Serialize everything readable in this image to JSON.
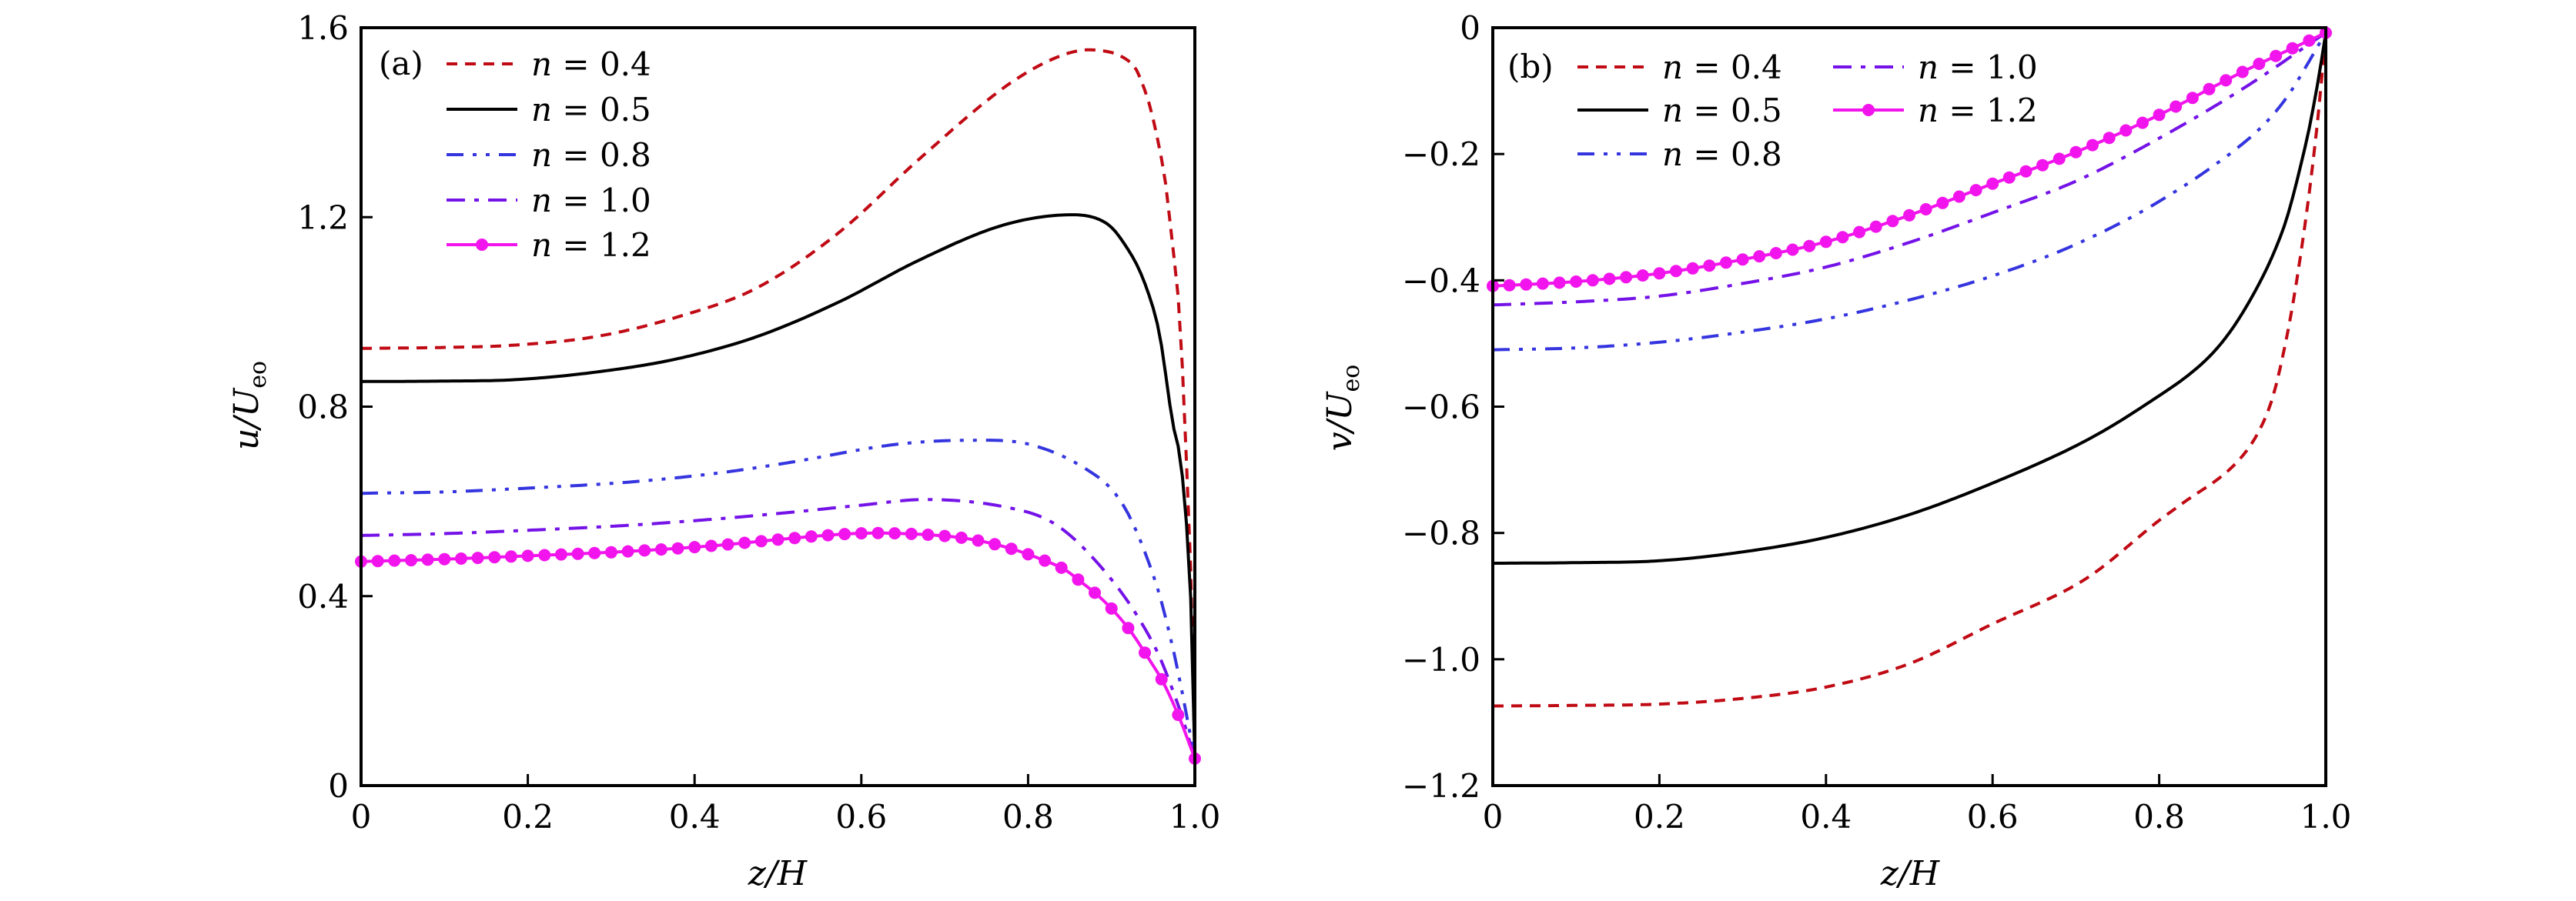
{
  "chart_data": [
    {
      "type": "line",
      "panel": "(a)",
      "xlabel": "z/H",
      "ylabel_main": "u/U",
      "ylabel_sub": "eo",
      "xlim": [
        0,
        1.0
      ],
      "ylim": [
        0,
        1.6
      ],
      "xticks": [
        0,
        0.2,
        0.4,
        0.6,
        0.8,
        1.0
      ],
      "xtick_labels": [
        "0",
        "0.2",
        "0.4",
        "0.6",
        "0.8",
        "1.0"
      ],
      "yticks": [
        0,
        0.4,
        0.8,
        1.2,
        1.6
      ],
      "ytick_labels": [
        "0",
        "0.4",
        "0.8",
        "1.2",
        "1.6"
      ],
      "grid": false,
      "legend_position": "top-left",
      "legend_columns": 1,
      "series": [
        {
          "name": "n = 0.4",
          "label_var": "n",
          "label_val": "0.4",
          "color": "#C00A14",
          "style": "dashed",
          "markers": false,
          "x": [
            0,
            0.1,
            0.185,
            0.282,
            0.379,
            0.475,
            0.572,
            0.669,
            0.766,
            0.831,
            0.879,
            0.925,
            0.944,
            0.957,
            0.966,
            0.972,
            0.979,
            0.983,
            0.99,
            0.996,
            1.0
          ],
          "y": [
            0.923,
            0.925,
            0.93,
            0.948,
            0.989,
            1.051,
            1.166,
            1.322,
            1.467,
            1.535,
            1.553,
            1.523,
            1.447,
            1.35,
            1.258,
            1.16,
            1.052,
            0.955,
            0.68,
            0.4,
            0.057
          ]
        },
        {
          "name": "n = 0.5",
          "label_var": "n",
          "label_val": "0.5",
          "color": "#000000",
          "style": "solid",
          "markers": false,
          "x": [
            0,
            0.1,
            0.185,
            0.282,
            0.379,
            0.475,
            0.572,
            0.669,
            0.766,
            0.847,
            0.894,
            0.925,
            0.944,
            0.958,
            0.973,
            0.983,
            0.992,
            0.997,
            1.0
          ],
          "y": [
            0.853,
            0.854,
            0.857,
            0.873,
            0.901,
            0.948,
            1.02,
            1.109,
            1.181,
            1.205,
            1.187,
            1.117,
            1.041,
            0.949,
            0.77,
            0.684,
            0.5,
            0.3,
            0.057
          ]
        },
        {
          "name": "n = 0.8",
          "label_var": "n",
          "label_val": "0.8",
          "color": "#3535E0",
          "style": "dashdotdot",
          "markers": false,
          "x": [
            0,
            0.1,
            0.2,
            0.316,
            0.42,
            0.51,
            0.64,
            0.731,
            0.8,
            0.867,
            0.912,
            0.95,
            0.975,
            1.0
          ],
          "y": [
            0.617,
            0.62,
            0.628,
            0.64,
            0.658,
            0.681,
            0.72,
            0.729,
            0.721,
            0.671,
            0.598,
            0.445,
            0.28,
            0.057
          ]
        },
        {
          "name": "n = 1.0",
          "label_var": "n",
          "label_val": "1.0",
          "color": "#7412E8",
          "style": "dashdot",
          "markers": false,
          "x": [
            0,
            0.1,
            0.2,
            0.316,
            0.42,
            0.51,
            0.6,
            0.679,
            0.77,
            0.835,
            0.9,
            0.95,
            0.98,
            1.0
          ],
          "y": [
            0.528,
            0.532,
            0.539,
            0.549,
            0.562,
            0.576,
            0.592,
            0.604,
            0.589,
            0.549,
            0.435,
            0.3,
            0.17,
            0.057
          ]
        },
        {
          "name": "n = 1.2",
          "label_var": "n",
          "label_val": "1.2",
          "color": "#F214EC",
          "style": "solid",
          "markers": true,
          "marker_step": 0.02,
          "x": [
            0,
            0.1,
            0.2,
            0.316,
            0.42,
            0.51,
            0.58,
            0.63,
            0.7,
            0.738,
            0.78,
            0.82,
            0.844,
            0.862,
            0.882,
            0.902,
            0.922,
            0.941,
            0.962,
            0.981,
            1.0
          ],
          "y": [
            0.473,
            0.478,
            0.485,
            0.494,
            0.506,
            0.521,
            0.531,
            0.533,
            0.527,
            0.518,
            0.5,
            0.475,
            0.456,
            0.432,
            0.404,
            0.37,
            0.328,
            0.278,
            0.218,
            0.145,
            0.057
          ]
        }
      ]
    },
    {
      "type": "line",
      "panel": "(b)",
      "xlabel": "z/H",
      "ylabel_main": "v/U",
      "ylabel_sub": "eo",
      "xlim": [
        0,
        1.0
      ],
      "ylim": [
        -1.2,
        0
      ],
      "xticks": [
        0,
        0.2,
        0.4,
        0.6,
        0.8,
        1.0
      ],
      "xtick_labels": [
        "0",
        "0.2",
        "0.4",
        "0.6",
        "0.8",
        "1.0"
      ],
      "yticks": [
        0,
        -0.2,
        -0.4,
        -0.6,
        -0.8,
        -1.0,
        -1.2
      ],
      "ytick_labels": [
        "0",
        "−0.2",
        "−0.4",
        "−0.6",
        "−0.8",
        "−1.0",
        "−1.2"
      ],
      "grid": false,
      "legend_position": "top-left",
      "legend_columns": 2,
      "series": [
        {
          "name": "n = 0.4",
          "label_var": "n",
          "label_val": "0.4",
          "color": "#C00A14",
          "style": "dashed",
          "markers": false,
          "x": [
            0,
            0.1,
            0.2,
            0.3,
            0.4,
            0.5,
            0.6,
            0.709,
            0.8,
            0.826,
            0.894,
            0.931,
            0.954,
            0.974,
            0.99,
            1.0
          ],
          "y": [
            -1.074,
            -1.073,
            -1.071,
            -1.062,
            -1.044,
            -1.007,
            -0.944,
            -0.875,
            -0.78,
            -0.755,
            -0.687,
            -0.606,
            -0.484,
            -0.322,
            -0.15,
            -0.008
          ]
        },
        {
          "name": "n = 0.5",
          "label_var": "n",
          "label_val": "0.5",
          "color": "#000000",
          "style": "solid",
          "markers": false,
          "x": [
            0,
            0.1,
            0.2,
            0.3,
            0.4,
            0.5,
            0.6,
            0.703,
            0.78,
            0.857,
            0.904,
            0.948,
            0.975,
            0.99,
            1.0
          ],
          "y": [
            -0.848,
            -0.847,
            -0.844,
            -0.83,
            -0.807,
            -0.771,
            -0.721,
            -0.66,
            -0.6,
            -0.525,
            -0.443,
            -0.322,
            -0.19,
            -0.09,
            -0.008
          ]
        },
        {
          "name": "n = 0.8",
          "label_var": "n",
          "label_val": "0.8",
          "color": "#3535E0",
          "style": "dashdotdot",
          "markers": false,
          "x": [
            0,
            0.1,
            0.2,
            0.3,
            0.4,
            0.5,
            0.6,
            0.7,
            0.8,
            0.9,
            0.95,
            1.0
          ],
          "y": [
            -0.51,
            -0.507,
            -0.498,
            -0.482,
            -0.461,
            -0.431,
            -0.393,
            -0.343,
            -0.275,
            -0.184,
            -0.116,
            -0.008
          ]
        },
        {
          "name": "n = 1.0",
          "label_var": "n",
          "label_val": "1.0",
          "color": "#7412E8",
          "style": "dashdot",
          "markers": false,
          "x": [
            0,
            0.1,
            0.2,
            0.3,
            0.4,
            0.5,
            0.6,
            0.7,
            0.8,
            0.9,
            1.0
          ],
          "y": [
            -0.439,
            -0.434,
            -0.425,
            -0.405,
            -0.379,
            -0.34,
            -0.293,
            -0.243,
            -0.175,
            -0.097,
            -0.008
          ]
        },
        {
          "name": "n = 1.2",
          "label_var": "n",
          "label_val": "1.2",
          "color": "#F214EC",
          "style": "solid",
          "markers": true,
          "marker_step": 0.02,
          "x": [
            0,
            0.1,
            0.2,
            0.3,
            0.4,
            0.5,
            0.6,
            0.7,
            0.8,
            0.9,
            1.0
          ],
          "y": [
            -0.409,
            -0.402,
            -0.389,
            -0.367,
            -0.339,
            -0.297,
            -0.247,
            -0.197,
            -0.138,
            -0.07,
            -0.008
          ]
        }
      ]
    }
  ]
}
